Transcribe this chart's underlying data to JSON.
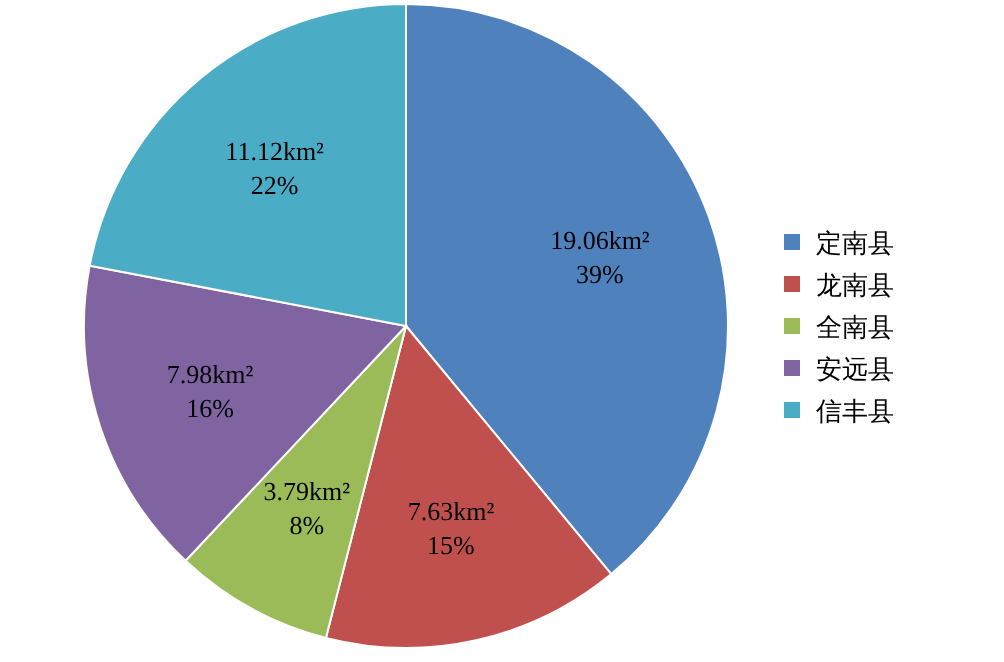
{
  "chart_data": {
    "type": "pie",
    "categories": [
      "定南县",
      "龙南县",
      "全南县",
      "安远县",
      "信丰县"
    ],
    "values": [
      39,
      15,
      8,
      16,
      22
    ],
    "colors": [
      "#4f81bd",
      "#c0504d",
      "#9bbb59",
      "#8064a2",
      "#4bacc6"
    ],
    "value_labels": [
      "19.06km²\n39%",
      "7.63km²\n15%",
      "3.79km²\n8%",
      "7.98km²\n16%",
      "11.12km²\n22%"
    ],
    "legend": "right"
  }
}
